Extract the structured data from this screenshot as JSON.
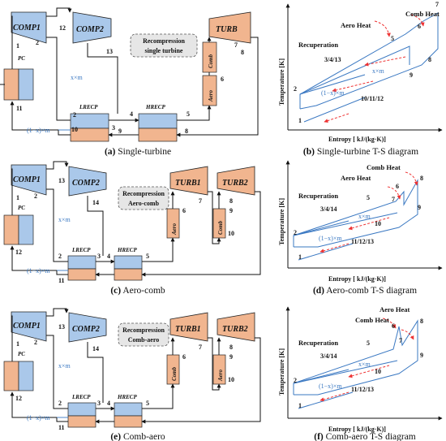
{
  "panels": [
    {
      "caption_letter": "(a)",
      "caption_text": " Single-turbine",
      "turbines": [
        "TURB"
      ],
      "box_text": [
        "Recompression",
        "single turbine"
      ],
      "heaters": [
        "Aero",
        "Comb"
      ],
      "state_labels": {
        "p1": "1",
        "p2": "2",
        "p3": "3",
        "p4": "4",
        "p5": "5",
        "p6": "6",
        "p7": "7",
        "p8": "8",
        "p9": "9",
        "p10": "10",
        "p11": "11",
        "p12": "12",
        "p13": "13"
      }
    },
    {
      "caption_letter": "(c)",
      "caption_text": " Aero-comb",
      "turbines": [
        "TURB1",
        "TURB2"
      ],
      "box_text": [
        "Recompression",
        "Aero-comb"
      ],
      "heaters": [
        "Aero",
        "Comb"
      ],
      "state_labels": {
        "p1": "1",
        "p2": "2",
        "p3": "3",
        "p4": "4",
        "p5": "5",
        "p6": "6",
        "p7": "7",
        "p8": "8",
        "p9": "9",
        "p10": "10",
        "p11": "11",
        "p12": "12",
        "p13": "13",
        "p14": "14"
      }
    },
    {
      "caption_letter": "(e)",
      "caption_text": " Comb-aero",
      "turbines": [
        "TURB1",
        "TURB2"
      ],
      "box_text": [
        "Recompression",
        "Comb-aero"
      ],
      "heaters": [
        "Comb",
        "Aero"
      ],
      "state_labels": {
        "p1": "1",
        "p2": "2",
        "p3": "3",
        "p4": "4",
        "p5": "5",
        "p6": "6",
        "p7": "7",
        "p8": "8",
        "p9": "9",
        "p10": "10",
        "p11": "11",
        "p12": "12",
        "p13": "13",
        "p14": "14"
      }
    }
  ],
  "common": {
    "comp1": "COMP1",
    "comp2": "COMP2",
    "pc": "PC",
    "lrecp": "LRECP",
    "hrecp": "HRECP",
    "xm": "x×m",
    "one_minus_xm": "(1−x)×m"
  },
  "ts": [
    {
      "caption_letter": "(b)",
      "caption_text": " Single-turbine T-S diagram",
      "comb_heat": "Comb Heat",
      "aero_heat": "Aero Heat",
      "recuperation": "Recuperation",
      "labels": [
        "7",
        "6",
        "5",
        "8",
        "3/4/13",
        "9",
        "2",
        "10/11/12",
        "1"
      ]
    },
    {
      "caption_letter": "(d)",
      "caption_text": " Aero-comb T-S diagram",
      "comb_heat": "Comb Heat",
      "aero_heat": "Aero Heat",
      "recuperation": "Recuperation",
      "labels": [
        "8",
        "6",
        "7",
        "5",
        "3/4/14",
        "9",
        "10",
        "2",
        "11/12/13",
        "1"
      ]
    },
    {
      "caption_letter": "(f)",
      "caption_text": " Comb-aero T-S diagram",
      "comb_heat": "Comb Heat",
      "aero_heat": "Aero Heat",
      "recuperation": "Recuperation",
      "labels": [
        "8",
        "6",
        "7",
        "5",
        "3/4/14",
        "9",
        "10",
        "2",
        "11/12/13",
        "1"
      ]
    }
  ],
  "axes": {
    "y": "Temperature [K]",
    "x": "Entropy [ kJ/(kg·K)]"
  }
}
